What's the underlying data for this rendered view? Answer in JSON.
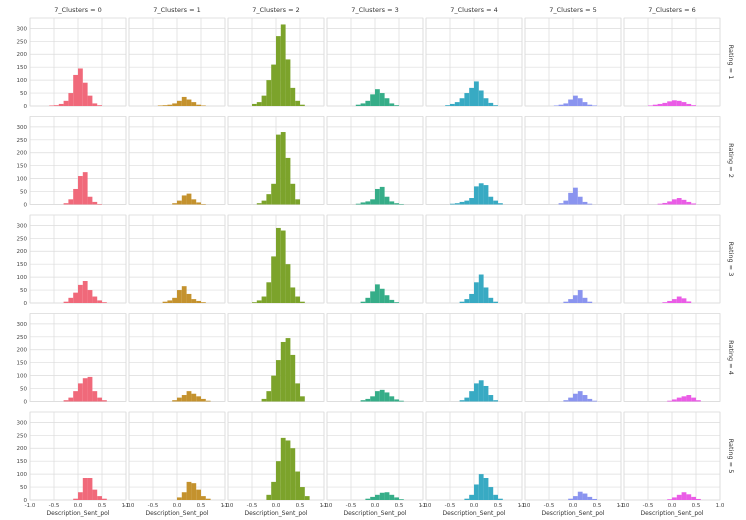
{
  "chart_data": {
    "type": "bar",
    "layout": "facet-grid",
    "col_variable": "7_Clusters",
    "row_variable": "Rating",
    "col_titles": [
      "7_Clusters = 0",
      "7_Clusters = 1",
      "7_Clusters = 2",
      "7_Clusters = 3",
      "7_Clusters = 4",
      "7_Clusters = 5",
      "7_Clusters = 6"
    ],
    "row_titles": [
      "Rating = 1",
      "Rating = 2",
      "Rating = 3",
      "Rating = 4",
      "Rating = 5"
    ],
    "xlabel": "Description_Sent_pol",
    "ylabel": "",
    "xlim": [
      -1.0,
      1.0
    ],
    "ylim": [
      0,
      340
    ],
    "x_ticks": [
      -1.0,
      -0.5,
      0.0,
      0.5,
      1.0
    ],
    "x_tick_labels": [
      "-1.0",
      "-0.5",
      "0.0",
      "0.5",
      "1.0"
    ],
    "y_ticks": [
      0,
      50,
      100,
      150,
      200,
      250,
      300
    ],
    "y_tick_labels": [
      "0",
      "50",
      "100",
      "150",
      "200",
      "250",
      "300"
    ],
    "grid": true,
    "bin_width": 0.1,
    "colors": [
      "#f0697a",
      "#c4922e",
      "#7ca32b",
      "#36ad88",
      "#38aac3",
      "#8a94ef",
      "#ea5ce6"
    ],
    "panels": [
      [
        {
          "bins": [
            -0.6,
            -0.5,
            -0.4,
            -0.3,
            -0.2,
            -0.1,
            0.0,
            0.1,
            0.2,
            0.3,
            0.4
          ],
          "counts": [
            2,
            3,
            8,
            20,
            50,
            120,
            145,
            90,
            40,
            10,
            3
          ]
        },
        {
          "bins": [
            -0.4,
            -0.3,
            -0.2,
            -0.1,
            0.0,
            0.1,
            0.2,
            0.3,
            0.4,
            0.5
          ],
          "counts": [
            2,
            3,
            5,
            10,
            20,
            35,
            25,
            15,
            5,
            2
          ]
        },
        {
          "bins": [
            -0.5,
            -0.4,
            -0.3,
            -0.2,
            -0.1,
            0.0,
            0.1,
            0.2,
            0.3,
            0.4,
            0.5
          ],
          "counts": [
            8,
            15,
            40,
            100,
            160,
            270,
            315,
            180,
            70,
            20,
            5
          ]
        },
        {
          "bins": [
            -0.4,
            -0.3,
            -0.2,
            -0.1,
            0.0,
            0.1,
            0.2,
            0.3,
            0.4
          ],
          "counts": [
            5,
            10,
            20,
            45,
            65,
            50,
            30,
            10,
            3
          ]
        },
        {
          "bins": [
            -0.6,
            -0.5,
            -0.4,
            -0.3,
            -0.2,
            -0.1,
            0.0,
            0.1,
            0.2,
            0.3,
            0.4
          ],
          "counts": [
            3,
            8,
            15,
            30,
            50,
            70,
            95,
            60,
            30,
            12,
            3
          ]
        },
        {
          "bins": [
            -0.4,
            -0.3,
            -0.2,
            -0.1,
            0.0,
            0.1,
            0.2,
            0.3,
            0.4
          ],
          "counts": [
            2,
            5,
            10,
            25,
            40,
            30,
            15,
            5,
            2
          ]
        },
        {
          "bins": [
            -0.5,
            -0.4,
            -0.3,
            -0.2,
            -0.1,
            0.0,
            0.1,
            0.2,
            0.3,
            0.4
          ],
          "counts": [
            2,
            5,
            8,
            12,
            18,
            22,
            20,
            15,
            8,
            3
          ]
        }
      ],
      [
        {
          "bins": [
            -0.3,
            -0.2,
            -0.1,
            0.0,
            0.1,
            0.2,
            0.3,
            0.4
          ],
          "counts": [
            5,
            20,
            60,
            110,
            125,
            30,
            10,
            2
          ]
        },
        {
          "bins": [
            -0.1,
            0.0,
            0.1,
            0.2,
            0.3,
            0.4,
            0.5
          ],
          "counts": [
            5,
            15,
            35,
            42,
            20,
            8,
            2
          ]
        },
        {
          "bins": [
            -0.4,
            -0.3,
            -0.2,
            -0.1,
            0.0,
            0.1,
            0.2,
            0.3,
            0.4
          ],
          "counts": [
            5,
            15,
            40,
            80,
            270,
            280,
            180,
            80,
            20
          ]
        },
        {
          "bins": [
            -0.4,
            -0.3,
            -0.2,
            -0.1,
            0.0,
            0.1,
            0.2,
            0.3,
            0.4,
            0.5
          ],
          "counts": [
            3,
            8,
            12,
            20,
            60,
            68,
            30,
            12,
            5,
            2
          ]
        },
        {
          "bins": [
            -0.5,
            -0.4,
            -0.3,
            -0.2,
            -0.1,
            0.0,
            0.1,
            0.2,
            0.3,
            0.4,
            0.5
          ],
          "counts": [
            3,
            5,
            10,
            15,
            25,
            70,
            82,
            75,
            30,
            15,
            5
          ]
        },
        {
          "bins": [
            -0.3,
            -0.2,
            -0.1,
            0.0,
            0.1,
            0.2,
            0.3
          ],
          "counts": [
            5,
            15,
            45,
            65,
            30,
            10,
            3
          ]
        },
        {
          "bins": [
            -0.3,
            -0.2,
            -0.1,
            0.0,
            0.1,
            0.2,
            0.3,
            0.4
          ],
          "counts": [
            3,
            6,
            12,
            20,
            25,
            18,
            10,
            4
          ]
        }
      ],
      [
        {
          "bins": [
            -0.3,
            -0.2,
            -0.1,
            0.0,
            0.1,
            0.2,
            0.3,
            0.4,
            0.5
          ],
          "counts": [
            5,
            20,
            40,
            70,
            85,
            50,
            25,
            10,
            3
          ]
        },
        {
          "bins": [
            -0.3,
            -0.2,
            -0.1,
            0.0,
            0.1,
            0.2,
            0.3,
            0.4,
            0.5
          ],
          "counts": [
            5,
            10,
            20,
            50,
            65,
            35,
            15,
            8,
            3
          ]
        },
        {
          "bins": [
            -0.5,
            -0.4,
            -0.3,
            -0.2,
            -0.1,
            0.0,
            0.1,
            0.2,
            0.3,
            0.4,
            0.5
          ],
          "counts": [
            3,
            10,
            25,
            80,
            180,
            290,
            280,
            150,
            60,
            25,
            5
          ]
        },
        {
          "bins": [
            -0.3,
            -0.2,
            -0.1,
            0.0,
            0.1,
            0.2,
            0.3,
            0.4
          ],
          "counts": [
            5,
            20,
            45,
            72,
            55,
            30,
            12,
            3
          ]
        },
        {
          "bins": [
            -0.3,
            -0.2,
            -0.1,
            0.0,
            0.1,
            0.2,
            0.3,
            0.4
          ],
          "counts": [
            5,
            15,
            35,
            80,
            110,
            60,
            20,
            5
          ]
        },
        {
          "bins": [
            -0.2,
            -0.1,
            0.0,
            0.1,
            0.2,
            0.3
          ],
          "counts": [
            5,
            15,
            30,
            50,
            20,
            5
          ]
        },
        {
          "bins": [
            -0.2,
            -0.1,
            0.0,
            0.1,
            0.2,
            0.3
          ],
          "counts": [
            3,
            8,
            15,
            25,
            18,
            6
          ]
        }
      ],
      [
        {
          "bins": [
            -0.3,
            -0.2,
            -0.1,
            0.0,
            0.1,
            0.2,
            0.3,
            0.4,
            0.5
          ],
          "counts": [
            5,
            15,
            40,
            70,
            90,
            95,
            40,
            15,
            5
          ]
        },
        {
          "bins": [
            -0.1,
            0.0,
            0.1,
            0.2,
            0.3,
            0.4,
            0.5,
            0.6
          ],
          "counts": [
            5,
            15,
            25,
            40,
            30,
            20,
            10,
            3
          ]
        },
        {
          "bins": [
            -0.3,
            -0.2,
            -0.1,
            0.0,
            0.1,
            0.2,
            0.3,
            0.4,
            0.5
          ],
          "counts": [
            10,
            40,
            100,
            160,
            230,
            245,
            180,
            70,
            20
          ]
        },
        {
          "bins": [
            -0.3,
            -0.2,
            -0.1,
            0.0,
            0.1,
            0.2,
            0.3,
            0.4,
            0.5
          ],
          "counts": [
            5,
            10,
            20,
            40,
            45,
            35,
            20,
            8,
            3
          ]
        },
        {
          "bins": [
            -0.3,
            -0.2,
            -0.1,
            0.0,
            0.1,
            0.2,
            0.3,
            0.4
          ],
          "counts": [
            5,
            15,
            40,
            70,
            82,
            60,
            25,
            5
          ]
        },
        {
          "bins": [
            -0.2,
            -0.1,
            0.0,
            0.1,
            0.2,
            0.3,
            0.4
          ],
          "counts": [
            5,
            15,
            30,
            40,
            25,
            10,
            3
          ]
        },
        {
          "bins": [
            -0.1,
            0.0,
            0.1,
            0.2,
            0.3,
            0.4,
            0.5
          ],
          "counts": [
            3,
            8,
            15,
            20,
            25,
            15,
            5
          ]
        }
      ],
      [
        {
          "bins": [
            -0.1,
            0.0,
            0.1,
            0.2,
            0.3,
            0.4,
            0.5
          ],
          "counts": [
            5,
            30,
            85,
            85,
            40,
            15,
            5
          ]
        },
        {
          "bins": [
            0.0,
            0.1,
            0.2,
            0.3,
            0.4,
            0.5,
            0.6
          ],
          "counts": [
            10,
            30,
            70,
            65,
            40,
            15,
            5
          ]
        },
        {
          "bins": [
            -0.2,
            -0.1,
            0.0,
            0.1,
            0.2,
            0.3,
            0.4,
            0.5,
            0.6
          ],
          "counts": [
            20,
            70,
            150,
            240,
            230,
            200,
            110,
            50,
            15
          ]
        },
        {
          "bins": [
            -0.2,
            -0.1,
            0.0,
            0.1,
            0.2,
            0.3,
            0.4,
            0.5
          ],
          "counts": [
            5,
            12,
            20,
            28,
            30,
            20,
            10,
            3
          ]
        },
        {
          "bins": [
            -0.2,
            -0.1,
            0.0,
            0.1,
            0.2,
            0.3,
            0.4,
            0.5
          ],
          "counts": [
            5,
            20,
            60,
            100,
            85,
            50,
            20,
            5
          ]
        },
        {
          "bins": [
            -0.1,
            0.0,
            0.1,
            0.2,
            0.3,
            0.4
          ],
          "counts": [
            5,
            15,
            32,
            25,
            12,
            4
          ]
        },
        {
          "bins": [
            -0.1,
            0.0,
            0.1,
            0.2,
            0.3,
            0.4,
            0.5
          ],
          "counts": [
            3,
            10,
            20,
            30,
            22,
            12,
            4
          ]
        }
      ]
    ]
  }
}
